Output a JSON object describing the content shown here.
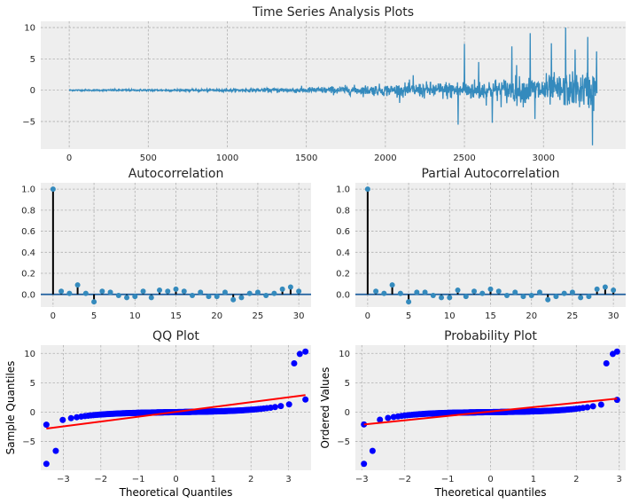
{
  "figure": {
    "title": "Time Series Analysis Plots"
  },
  "colors": {
    "background": "#eeeeee",
    "series": "#348abd",
    "stem": "#000000",
    "qq_points": "#0000ff",
    "qq_line": "#ff0000"
  },
  "chart_data": [
    {
      "id": "ts",
      "type": "line",
      "title": "Time Series Analysis Plots",
      "xlabel": "",
      "ylabel": "",
      "xlim": [
        -180,
        3520
      ],
      "ylim": [
        -9.4,
        11
      ],
      "xticks": [
        0,
        500,
        1000,
        1500,
        2000,
        2500,
        3000
      ],
      "yticks": [
        -5,
        0,
        5,
        10
      ],
      "n": 3340,
      "envelope_note_points": [
        {
          "x": 0,
          "amp": 0.1
        },
        {
          "x": 1000,
          "amp": 0.2
        },
        {
          "x": 1500,
          "amp": 0.45
        },
        {
          "x": 2000,
          "amp": 0.9
        },
        {
          "x": 2500,
          "amp": 1.5
        },
        {
          "x": 3000,
          "amp": 2.3
        },
        {
          "x": 3320,
          "amp": 3.0
        }
      ],
      "spikes": [
        {
          "x": 2175,
          "y": 2.4
        },
        {
          "x": 2460,
          "y": -5.5
        },
        {
          "x": 2500,
          "y": 7.4
        },
        {
          "x": 2590,
          "y": 4.5
        },
        {
          "x": 2675,
          "y": -5.2
        },
        {
          "x": 2800,
          "y": 7.0
        },
        {
          "x": 2830,
          "y": 4.0
        },
        {
          "x": 2915,
          "y": 9.1
        },
        {
          "x": 2945,
          "y": -4.6
        },
        {
          "x": 3050,
          "y": 7.5
        },
        {
          "x": 3140,
          "y": 10.0
        },
        {
          "x": 3200,
          "y": 6.5
        },
        {
          "x": 3280,
          "y": 8.5
        },
        {
          "x": 3310,
          "y": -8.8
        },
        {
          "x": 3335,
          "y": 6.2
        }
      ]
    },
    {
      "id": "acf",
      "type": "stem",
      "title": "Autocorrelation",
      "xlabel": "",
      "ylabel": "",
      "xlim": [
        -1.5,
        31.5
      ],
      "ylim": [
        -0.12,
        1.06
      ],
      "xticks": [
        0,
        5,
        10,
        15,
        20,
        25,
        30
      ],
      "yticks": [
        0.0,
        0.2,
        0.4,
        0.6,
        0.8,
        1.0
      ],
      "lags": [
        0,
        1,
        2,
        3,
        4,
        5,
        6,
        7,
        8,
        9,
        10,
        11,
        12,
        13,
        14,
        15,
        16,
        17,
        18,
        19,
        20,
        21,
        22,
        23,
        24,
        25,
        26,
        27,
        28,
        29,
        30
      ],
      "values": [
        1.0,
        0.03,
        0.01,
        0.09,
        0.01,
        -0.07,
        0.03,
        0.02,
        -0.01,
        -0.03,
        -0.02,
        0.03,
        -0.03,
        0.04,
        0.03,
        0.05,
        0.03,
        -0.01,
        0.02,
        -0.02,
        -0.02,
        0.02,
        -0.05,
        -0.03,
        0.01,
        0.02,
        -0.01,
        0.01,
        0.05,
        0.07,
        0.03
      ]
    },
    {
      "id": "pacf",
      "type": "stem",
      "title": "Partial Autocorrelation",
      "xlabel": "",
      "ylabel": "",
      "xlim": [
        -1.5,
        31.5
      ],
      "ylim": [
        -0.12,
        1.06
      ],
      "xticks": [
        0,
        5,
        10,
        15,
        20,
        25,
        30
      ],
      "yticks": [
        0.0,
        0.2,
        0.4,
        0.6,
        0.8,
        1.0
      ],
      "lags": [
        0,
        1,
        2,
        3,
        4,
        5,
        6,
        7,
        8,
        9,
        10,
        11,
        12,
        13,
        14,
        15,
        16,
        17,
        18,
        19,
        20,
        21,
        22,
        23,
        24,
        25,
        26,
        27,
        28,
        29,
        30
      ],
      "values": [
        1.0,
        0.03,
        0.01,
        0.09,
        0.01,
        -0.07,
        0.02,
        0.02,
        -0.01,
        -0.03,
        -0.03,
        0.04,
        -0.02,
        0.03,
        0.01,
        0.05,
        0.03,
        -0.01,
        0.02,
        -0.02,
        -0.01,
        0.02,
        -0.05,
        -0.02,
        0.01,
        0.02,
        -0.03,
        -0.02,
        0.05,
        0.07,
        0.04
      ]
    },
    {
      "id": "qq",
      "type": "scatter",
      "title": "QQ Plot",
      "xlabel": "Theoretical Quantiles",
      "ylabel": "Sample Quantiles",
      "xlim": [
        -3.6,
        3.6
      ],
      "ylim": [
        -9.9,
        11.4
      ],
      "xticks": [
        -3,
        -2,
        -1,
        0,
        1,
        2,
        3
      ],
      "yticks": [
        -5,
        0,
        5,
        10
      ],
      "x_range": [
        -3.45,
        3.45
      ],
      "line": {
        "x": [
          -3.45,
          3.45
        ],
        "y": [
          -2.8,
          2.9
        ]
      },
      "tail_points": [
        {
          "x": -3.45,
          "y": -8.8
        },
        {
          "x": -3.2,
          "y": -6.6
        },
        {
          "x": 3.15,
          "y": 8.3
        },
        {
          "x": 3.3,
          "y": 9.9
        },
        {
          "x": 3.45,
          "y": 10.3
        }
      ]
    },
    {
      "id": "prob",
      "type": "scatter",
      "title": "Probability Plot",
      "xlabel": "Theoretical quantiles",
      "ylabel": "Ordered Values",
      "xlim": [
        -3.15,
        3.15
      ],
      "ylim": [
        -9.9,
        11.4
      ],
      "xticks": [
        -3,
        -2,
        -1,
        0,
        1,
        2,
        3
      ],
      "yticks": [
        -5,
        0,
        5,
        10
      ],
      "x_range": [
        -2.95,
        2.95
      ],
      "line": {
        "x": [
          -2.95,
          2.95
        ],
        "y": [
          -2.1,
          2.3
        ]
      },
      "tail_points": [
        {
          "x": -2.95,
          "y": -8.8
        },
        {
          "x": -2.75,
          "y": -6.6
        },
        {
          "x": 2.7,
          "y": 8.3
        },
        {
          "x": 2.85,
          "y": 9.9
        },
        {
          "x": 2.95,
          "y": 10.3
        }
      ]
    }
  ]
}
